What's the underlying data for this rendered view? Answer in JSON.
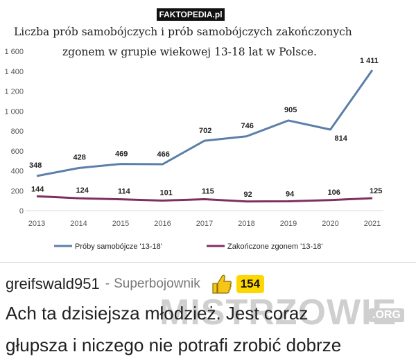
{
  "header": {
    "watermark": "FAKTOPEDIA.pl"
  },
  "chart_data": {
    "type": "line",
    "title_lines": [
      "Liczba prób samobójczych i prób samobójczych zakończonych",
      "zgonem w grupie wiekowej 13-18 lat w Polsce."
    ],
    "x": [
      "2013",
      "2014",
      "2015",
      "2016",
      "2017",
      "2018",
      "2019",
      "2020",
      "2021"
    ],
    "y_ticks": [
      "0",
      "200",
      "400",
      "600",
      "800",
      "1 000",
      "1 200",
      "1 400",
      "1 600"
    ],
    "ylim": [
      0,
      1600
    ],
    "grid": false,
    "legend_position": "bottom",
    "series": [
      {
        "name": "Próby samobójcze '13-18'",
        "color": "#5b7fa8",
        "values": [
          348,
          428,
          469,
          466,
          702,
          746,
          905,
          814,
          1411
        ],
        "labels": [
          "348",
          "428",
          "469",
          "466",
          "702",
          "746",
          "905",
          "814",
          "1 411"
        ]
      },
      {
        "name": "Zakończone zgonem '13-18'",
        "color": "#7f2f5f",
        "values": [
          144,
          124,
          114,
          101,
          115,
          92,
          94,
          106,
          125
        ],
        "labels": [
          "144",
          "124",
          "114",
          "101",
          "115",
          "92",
          "94",
          "106",
          "125"
        ]
      }
    ]
  },
  "comment": {
    "username": "greifswald951",
    "rank_separator": "-",
    "rank": "Superbojownik",
    "score": "154",
    "thumb_icon": "thumbs-up-icon",
    "watermark": "MISTRZOWIE",
    "watermark_suffix": ".ORG",
    "text_lines": [
      "Ach ta dzisiejsza młodzież. Jest coraz",
      "głupsza i niczego nie potrafi zrobić dobrze"
    ]
  }
}
